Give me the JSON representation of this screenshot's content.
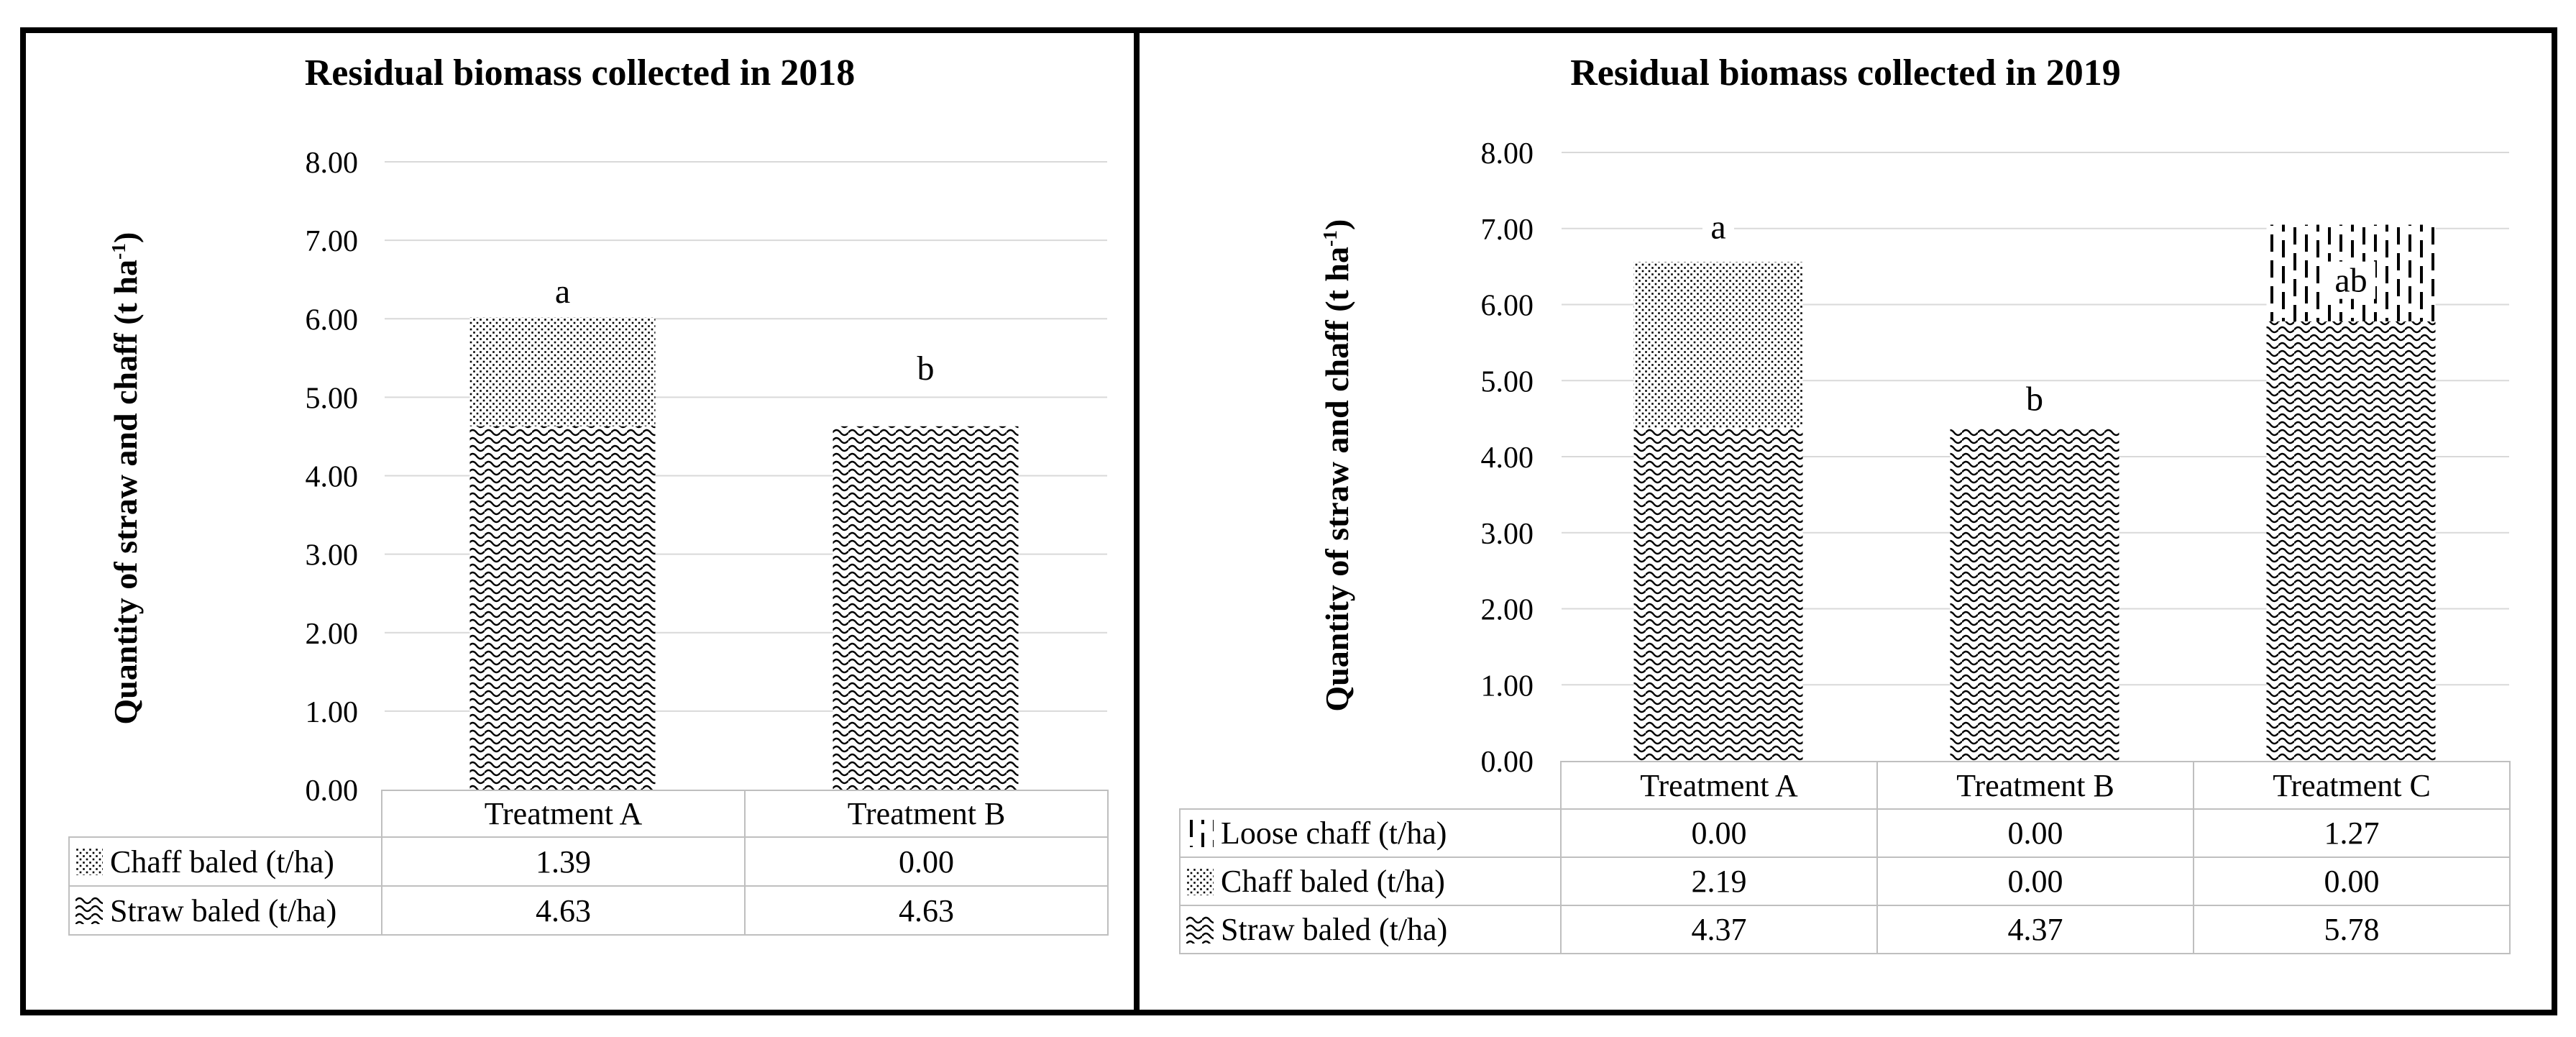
{
  "figure": {
    "background": "#ffffff",
    "frame_color": "#000000",
    "gridline_color": "#d9d9d9",
    "table_border_color": "#bfbfbf"
  },
  "chart_data": [
    {
      "type": "bar",
      "stacked": true,
      "title": "Residual biomass collected in 2018",
      "ylabel": {
        "prefix": "Quantity of straw and chaff (t ha",
        "sup": "-1",
        "suffix": ")"
      },
      "categories": [
        "Treatment A",
        "Treatment B"
      ],
      "series": [
        {
          "name": "Chaff baled (t/ha)",
          "pattern": "dots",
          "values": [
            1.39,
            0.0
          ]
        },
        {
          "name": "Straw baled (t/ha)",
          "pattern": "waves",
          "values": [
            4.63,
            4.63
          ]
        }
      ],
      "bar_labels": [
        {
          "text": "a",
          "y": 6.35,
          "bg": false
        },
        {
          "text": "b",
          "y": 5.37,
          "bg": false
        }
      ],
      "ylim": [
        0,
        8
      ],
      "ytick_step": 1.0,
      "ytick_format": "2dp",
      "grid": true,
      "legend_position": "table rows below chart"
    },
    {
      "type": "bar",
      "stacked": true,
      "title": "Residual biomass collected in 2019",
      "ylabel": {
        "prefix": "Quantity of straw and chaff (t ha",
        "sup": "-1",
        "suffix": ")"
      },
      "categories": [
        "Treatment A",
        "Treatment B",
        "Treatment C"
      ],
      "series": [
        {
          "name": "Loose chaff (t/ha)",
          "pattern": "dashes",
          "values": [
            0.0,
            0.0,
            1.27
          ]
        },
        {
          "name": "Chaff baled (t/ha)",
          "pattern": "dots",
          "values": [
            2.19,
            0.0,
            0.0
          ]
        },
        {
          "name": "Straw baled (t/ha)",
          "pattern": "waves",
          "values": [
            4.37,
            4.37,
            5.78
          ]
        }
      ],
      "bar_labels": [
        {
          "text": "a",
          "y": 7.02,
          "bg": true
        },
        {
          "text": "b",
          "y": 4.76,
          "bg": false
        },
        {
          "text": "ab",
          "y": 6.32,
          "bg": true
        }
      ],
      "ylim": [
        0,
        8
      ],
      "ytick_step": 1.0,
      "ytick_format": "2dp",
      "grid": true,
      "legend_position": "table rows below chart"
    }
  ]
}
